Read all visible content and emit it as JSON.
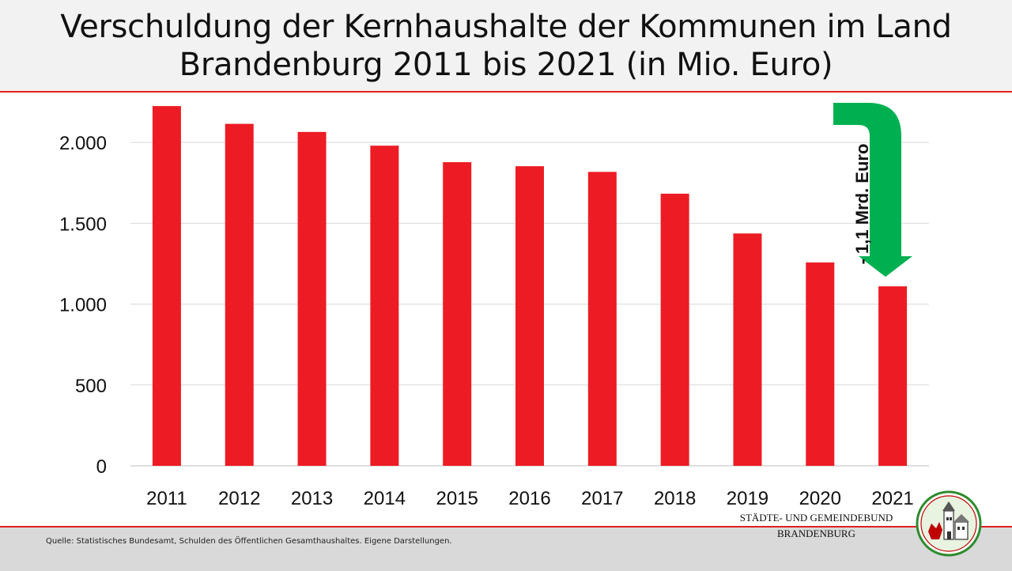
{
  "title": "Verschuldung der Kernhaushalte der Kommunen im Land Brandenburg 2011 bis 2021 (in Mio. Euro)",
  "source": "Quelle: Statistisches Bundesamt, Schulden des Öffentlichen Gesamthaushaltes. Eigene Darstellungen.",
  "org": {
    "line1": "Städte-  und Gemeindebund",
    "line2": "Brandenburg"
  },
  "annotation": "- 1,1 Mrd. Euro",
  "colors": {
    "bar": "#ed1c24",
    "arrow": "#00b050",
    "accent_line": "#e02020"
  },
  "chart_data": {
    "type": "bar",
    "categories": [
      "2011",
      "2012",
      "2013",
      "2014",
      "2015",
      "2016",
      "2017",
      "2018",
      "2019",
      "2020",
      "2021"
    ],
    "values": [
      2225,
      2115,
      2065,
      1980,
      1878,
      1853,
      1818,
      1683,
      1437,
      1258,
      1110
    ],
    "ylim": [
      0,
      2250
    ],
    "yticks": [
      0,
      500,
      1000,
      1500,
      2000
    ],
    "ytick_labels": [
      "0",
      "500",
      "1.000",
      "1.500",
      "2.000"
    ],
    "grid": true,
    "title": "Verschuldung der Kernhaushalte der Kommunen im Land Brandenburg 2011 bis 2021 (in Mio. Euro)"
  }
}
